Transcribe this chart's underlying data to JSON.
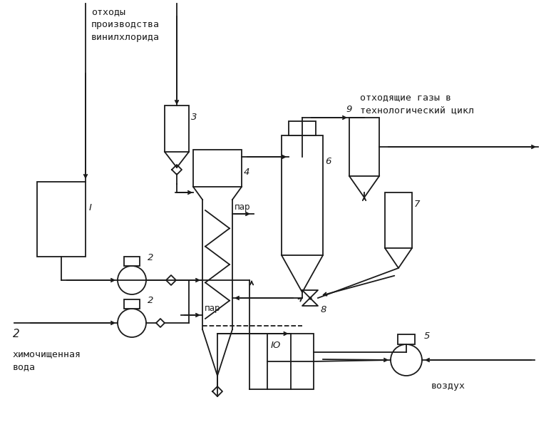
{
  "bg": "#ffffff",
  "lc": "#1a1a1a",
  "lw": 1.3,
  "text_top_left": "отходы\nпроизводства\nвинилхлорида",
  "text_top_right": "отходящие газы в\nтехнологический цикл",
  "text_bot_left": "химочищенная\nвода",
  "text_bot_right": "воздух",
  "par": "пар"
}
